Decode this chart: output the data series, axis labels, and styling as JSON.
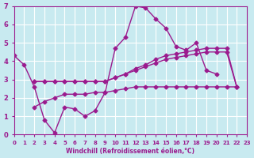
{
  "background_color": "#c8eaf0",
  "grid_color": "#ffffff",
  "line_color": "#9b1b8e",
  "xlim": [
    0,
    23
  ],
  "ylim": [
    0,
    7
  ],
  "xticks": [
    0,
    1,
    2,
    3,
    4,
    5,
    6,
    7,
    8,
    9,
    10,
    11,
    12,
    13,
    14,
    15,
    16,
    17,
    18,
    19,
    20,
    21,
    22,
    23
  ],
  "yticks": [
    0,
    1,
    2,
    3,
    4,
    5,
    6,
    7
  ],
  "xlabel": "Windchill (Refroidissement éolien,°C)",
  "series": [
    {
      "x_start": 0,
      "y": [
        4.3,
        3.8,
        2.6,
        0.8,
        0.1,
        1.5,
        1.4,
        1.0,
        1.3,
        2.3,
        4.7,
        5.3,
        7.0,
        6.9,
        6.3,
        5.8,
        4.8,
        4.6,
        5.0,
        3.5,
        3.3
      ]
    },
    {
      "x_start": 2,
      "y": [
        2.9,
        2.9,
        2.9,
        2.9,
        2.9,
        2.9,
        2.9,
        2.9,
        3.1,
        3.3,
        3.5,
        3.7,
        3.9,
        4.1,
        4.2,
        4.3,
        4.4,
        4.5,
        4.5,
        4.5,
        2.6
      ]
    },
    {
      "x_start": 2,
      "y": [
        2.9,
        2.9,
        2.9,
        2.9,
        2.9,
        2.9,
        2.9,
        2.9,
        3.1,
        3.3,
        3.6,
        3.8,
        4.1,
        4.3,
        4.4,
        4.5,
        4.6,
        4.7,
        4.7,
        4.7,
        2.6
      ]
    },
    {
      "x_start": 2,
      "y": [
        1.5,
        1.8,
        2.0,
        2.2,
        2.2,
        2.2,
        2.3,
        2.3,
        2.4,
        2.5,
        2.6,
        2.6,
        2.6,
        2.6,
        2.6,
        2.6,
        2.6,
        2.6,
        2.6,
        2.6,
        2.6
      ]
    }
  ]
}
